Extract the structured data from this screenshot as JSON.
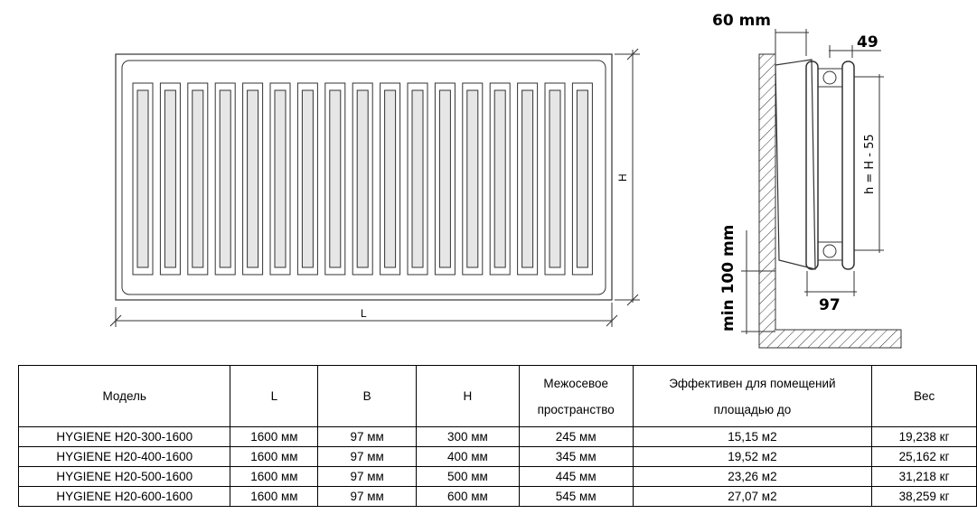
{
  "drawing": {
    "front_view": {
      "length_label": "L",
      "height_label": "H",
      "slot_count": 17
    },
    "side_view": {
      "wall_gap_label": "60 mm",
      "panel_gap_label": "49",
      "depth_label": "97",
      "axis_distance_label": "h = H - 55",
      "floor_gap_label": "min 100 mm"
    }
  },
  "table": {
    "headers": [
      "Модель",
      "L",
      "B",
      "H",
      "Межосевое пространство",
      "Эффективен для помещений площадью до",
      "Вес"
    ],
    "rows": [
      [
        "HYGIENE H20-300-1600",
        "1600 мм",
        "97 мм",
        "300 мм",
        "245 мм",
        "15,15 м2",
        "19,238 кг"
      ],
      [
        "HYGIENE H20-400-1600",
        "1600 мм",
        "97 мм",
        "400 мм",
        "345 мм",
        "19,52 м2",
        "25,162 кг"
      ],
      [
        "HYGIENE H20-500-1600",
        "1600 мм",
        "97 мм",
        "500 мм",
        "445 мм",
        "23,26 м2",
        "31,218 кг"
      ],
      [
        "HYGIENE H20-600-1600",
        "1600 мм",
        "97 мм",
        "600 мм",
        "545 мм",
        "27,07 м2",
        "38,259 кг"
      ]
    ]
  }
}
